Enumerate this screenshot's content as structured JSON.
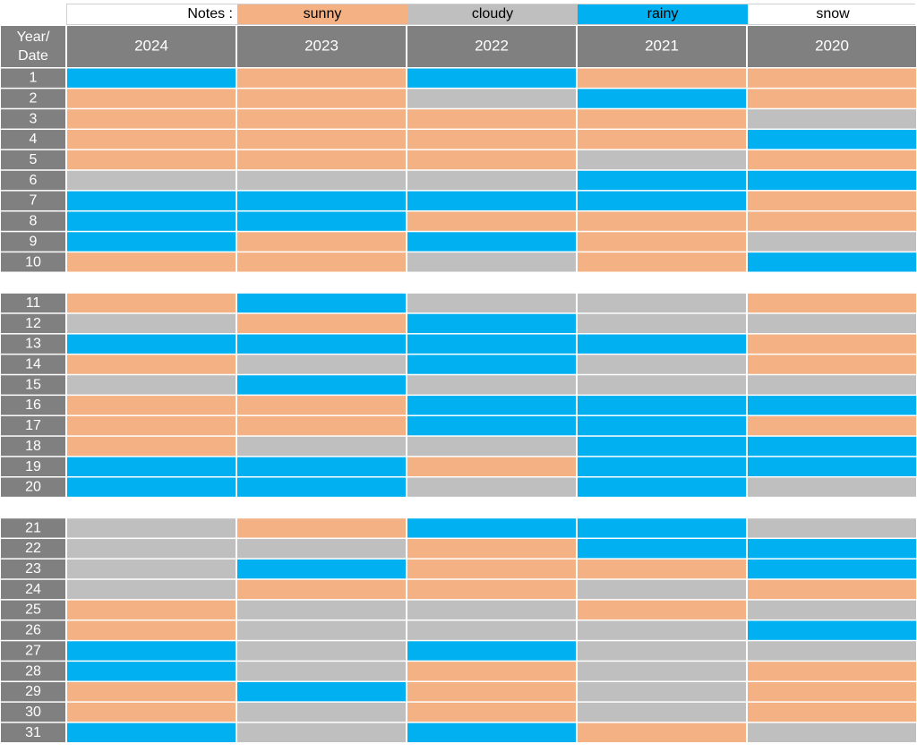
{
  "legend": {
    "label": "Notes :",
    "items": [
      {
        "key": "sunny",
        "label": "sunny",
        "color": "#f4b183"
      },
      {
        "key": "cloudy",
        "label": "cloudy",
        "color": "#bfbfbf"
      },
      {
        "key": "rainy",
        "label": "rainy",
        "color": "#00b0f0"
      },
      {
        "key": "snow",
        "label": "snow",
        "color": "#ffffff"
      }
    ]
  },
  "colors": {
    "header_bg": "#808080",
    "header_text": "#ffffff",
    "grid": "#d9d9d9"
  },
  "chart_data": {
    "type": "heatmap",
    "corner_label": [
      "Year/",
      "Date"
    ],
    "columns": [
      "2024",
      "2023",
      "2022",
      "2021",
      "2020"
    ],
    "rows": [
      "1",
      "2",
      "3",
      "4",
      "5",
      "6",
      "7",
      "8",
      "9",
      "10",
      "11",
      "12",
      "13",
      "14",
      "15",
      "16",
      "17",
      "18",
      "19",
      "20",
      "21",
      "22",
      "23",
      "24",
      "25",
      "26",
      "27",
      "28",
      "29",
      "30",
      "31"
    ],
    "groups": [
      10,
      10,
      11
    ],
    "values": [
      [
        "rainy",
        "sunny",
        "rainy",
        "sunny",
        "sunny"
      ],
      [
        "sunny",
        "sunny",
        "cloudy",
        "rainy",
        "sunny"
      ],
      [
        "sunny",
        "sunny",
        "sunny",
        "sunny",
        "cloudy"
      ],
      [
        "sunny",
        "sunny",
        "sunny",
        "sunny",
        "rainy"
      ],
      [
        "sunny",
        "sunny",
        "sunny",
        "cloudy",
        "sunny"
      ],
      [
        "cloudy",
        "cloudy",
        "cloudy",
        "rainy",
        "rainy"
      ],
      [
        "rainy",
        "rainy",
        "rainy",
        "rainy",
        "sunny"
      ],
      [
        "rainy",
        "rainy",
        "sunny",
        "sunny",
        "sunny"
      ],
      [
        "rainy",
        "sunny",
        "rainy",
        "sunny",
        "cloudy"
      ],
      [
        "sunny",
        "sunny",
        "cloudy",
        "sunny",
        "rainy"
      ],
      [
        "sunny",
        "rainy",
        "cloudy",
        "cloudy",
        "sunny"
      ],
      [
        "cloudy",
        "sunny",
        "rainy",
        "cloudy",
        "cloudy"
      ],
      [
        "rainy",
        "rainy",
        "rainy",
        "rainy",
        "sunny"
      ],
      [
        "sunny",
        "cloudy",
        "rainy",
        "cloudy",
        "sunny"
      ],
      [
        "cloudy",
        "rainy",
        "cloudy",
        "cloudy",
        "cloudy"
      ],
      [
        "sunny",
        "sunny",
        "rainy",
        "rainy",
        "rainy"
      ],
      [
        "sunny",
        "sunny",
        "rainy",
        "rainy",
        "sunny"
      ],
      [
        "sunny",
        "cloudy",
        "cloudy",
        "rainy",
        "rainy"
      ],
      [
        "rainy",
        "rainy",
        "sunny",
        "rainy",
        "rainy"
      ],
      [
        "rainy",
        "rainy",
        "cloudy",
        "rainy",
        "cloudy"
      ],
      [
        "cloudy",
        "sunny",
        "rainy",
        "rainy",
        "cloudy"
      ],
      [
        "cloudy",
        "cloudy",
        "sunny",
        "rainy",
        "rainy"
      ],
      [
        "cloudy",
        "rainy",
        "sunny",
        "sunny",
        "rainy"
      ],
      [
        "cloudy",
        "sunny",
        "sunny",
        "cloudy",
        "sunny"
      ],
      [
        "sunny",
        "cloudy",
        "cloudy",
        "sunny",
        "cloudy"
      ],
      [
        "sunny",
        "cloudy",
        "cloudy",
        "cloudy",
        "rainy"
      ],
      [
        "rainy",
        "cloudy",
        "rainy",
        "cloudy",
        "cloudy"
      ],
      [
        "rainy",
        "cloudy",
        "sunny",
        "cloudy",
        "sunny"
      ],
      [
        "sunny",
        "rainy",
        "sunny",
        "cloudy",
        "sunny"
      ],
      [
        "sunny",
        "cloudy",
        "sunny",
        "cloudy",
        "sunny"
      ],
      [
        "rainy",
        "cloudy",
        "rainy",
        "sunny",
        "cloudy"
      ]
    ]
  }
}
